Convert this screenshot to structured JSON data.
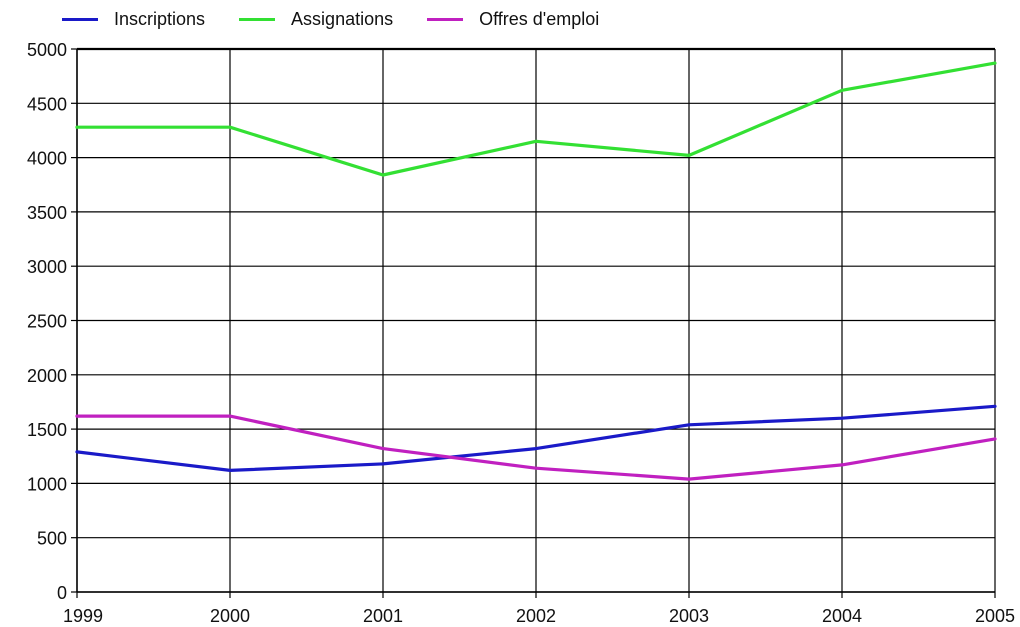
{
  "chart_data": {
    "type": "line",
    "x": [
      "1999",
      "2000",
      "2001",
      "2002",
      "2003",
      "2004",
      "2005"
    ],
    "ylim": [
      0,
      5000
    ],
    "yticks": [
      0,
      500,
      1000,
      1500,
      2000,
      2500,
      3000,
      3500,
      4000,
      4500,
      5000
    ],
    "grid": true,
    "legend_position": "top-left",
    "series": [
      {
        "name": "Inscriptions",
        "color": "#1a1ac8",
        "values": [
          1290,
          1120,
          1180,
          1320,
          1540,
          1600,
          1710
        ]
      },
      {
        "name": "Assignations",
        "color": "#33e033",
        "values": [
          4280,
          4280,
          3840,
          4150,
          4020,
          4620,
          4870
        ]
      },
      {
        "name": "Offres d'emploi",
        "color": "#c020c0",
        "values": [
          1620,
          1620,
          1320,
          1140,
          1040,
          1170,
          1410
        ]
      }
    ]
  }
}
